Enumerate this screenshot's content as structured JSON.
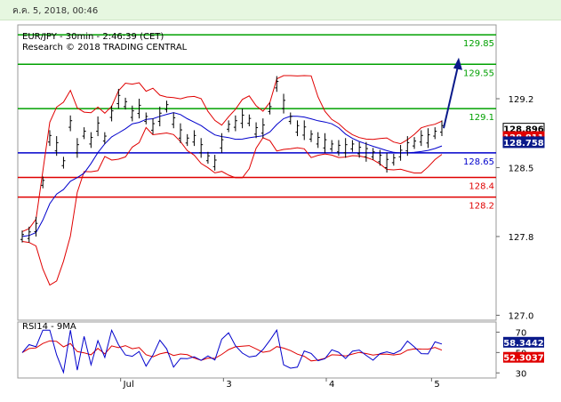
{
  "header": {
    "timestamp": "ค.ค. 5, 2018, 00:46"
  },
  "chart_data": {
    "type": "line",
    "title": "EUR/JPY - 30min - 2:46:39 (CET)",
    "subtitle": "Research © 2018 TRADING CENTRAL",
    "ylim": [
      126.95,
      129.95
    ],
    "y_ticks": [
      127.0,
      127.8,
      128.5,
      129.2
    ],
    "y_tick_labels": [
      "127.0",
      "127.8",
      "128.5",
      "129.2"
    ],
    "x_tick_labels": [
      "Jul",
      "3",
      "4",
      "5"
    ],
    "price_series": [
      127.8,
      127.82,
      127.9,
      128.35,
      128.8,
      128.72,
      128.55,
      128.95,
      128.7,
      128.85,
      128.78,
      128.92,
      128.8,
      129.05,
      129.2,
      129.15,
      129.05,
      129.1,
      129.0,
      128.92,
      129.02,
      129.12,
      128.98,
      128.85,
      128.78,
      128.8,
      128.7,
      128.6,
      128.55,
      128.75,
      128.92,
      128.95,
      129.0,
      128.98,
      128.88,
      128.9,
      129.1,
      129.35,
      129.15,
      129.0,
      128.9,
      128.88,
      128.82,
      128.78,
      128.75,
      128.72,
      128.7,
      128.7,
      128.72,
      128.68,
      128.66,
      128.64,
      128.6,
      128.55,
      128.58,
      128.65,
      128.72,
      128.75,
      128.8,
      128.8,
      128.85,
      128.9
    ],
    "levels": [
      {
        "value": 129.85,
        "label": "129.85",
        "color": "#00a000"
      },
      {
        "value": 129.55,
        "label": "129.55",
        "color": "#00a000"
      },
      {
        "value": 129.1,
        "label": "129.1",
        "color": "#00a000"
      },
      {
        "value": 128.65,
        "label": "128.65",
        "color": "#0000cc"
      },
      {
        "value": 128.4,
        "label": "128.4",
        "color": "#e00000"
      },
      {
        "value": 128.2,
        "label": "128.2",
        "color": "#e00000"
      }
    ],
    "price_tags": [
      {
        "value": 128.896,
        "label": "128.896",
        "bg": "#ffffff",
        "fg": "#000000"
      },
      {
        "value": 128.811,
        "label": "128.811",
        "bg": "#e00000",
        "fg": "#ffffff"
      },
      {
        "value": 128.758,
        "label": "128.758",
        "bg": "#0a1a8a",
        "fg": "#ffffff"
      }
    ],
    "colors": {
      "moving_average": "#0000cc",
      "bollinger": "#e00000",
      "price": "#000000",
      "arrow": "#0a1a8a"
    },
    "rsi": {
      "title": "RSI14 - 9MA",
      "ylim": [
        25,
        80
      ],
      "ticks": [
        30,
        50,
        70
      ],
      "tick_labels": [
        "30",
        "50",
        "70"
      ],
      "values": [
        58.3442,
        52.3037
      ],
      "value_labels": [
        "58.3442",
        "52.3037"
      ],
      "colors": {
        "rsi": "#0000cc",
        "ma": "#e00000"
      },
      "tag_colors": [
        {
          "bg": "#0a1a8a",
          "fg": "#ffffff"
        },
        {
          "bg": "#e00000",
          "fg": "#ffffff"
        }
      ]
    }
  }
}
